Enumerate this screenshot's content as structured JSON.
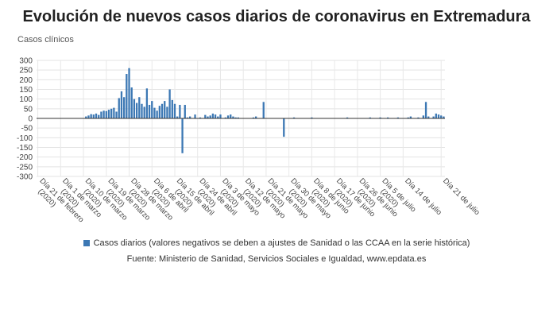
{
  "header": {
    "title": "Evolución de nuevos casos diarios de coronavirus en Extremadura",
    "unit_label": "Casos clínicos"
  },
  "legend": {
    "label": "Casos diarios (valores negativos se deben a ajustes de Sanidad o las CCAA en la serie histórica)"
  },
  "footer": {
    "source": "Fuente: Ministerio de Sanidad, Servicios Sociales e Igualdad, www.epdata.es"
  },
  "chart_data": {
    "type": "bar",
    "title": "Evolución de nuevos casos diarios de coronavirus en Extremadura",
    "ylabel": "Casos clínicos",
    "xlabel": "",
    "ylim": [
      -300,
      300
    ],
    "yticks": [
      -300,
      -250,
      -200,
      -150,
      -100,
      -50,
      0,
      50,
      100,
      150,
      200,
      250,
      300
    ],
    "grid": true,
    "legend_position": "bottom",
    "color": "#3c78b4",
    "x_tick_labels": [
      "Día 21 de febrero (2020)",
      "Día 1 de marzo (2020)",
      "Día 10 de marzo (2020)",
      "Día 19 de marzo (2020)",
      "Día 28 de marzo (2020)",
      "Día 6 de abril (2020)",
      "Día 15 de abril (2020)",
      "Día 24 de abril (2020)",
      "Día 3 de mayo (2020)",
      "Día 12 de mayo (2020)",
      "Día 21 de mayo (2020)",
      "Día 30 de mayo (2020)",
      "Día 8 de junio (2020)",
      "Día 17 de junio (2020)",
      "Día 26 de junio (2020)",
      "Día 5 de julio (2020)",
      "Día 14 de julio",
      "Día 21 de julio"
    ],
    "series": [
      {
        "name": "Casos diarios (valores negativos se deben a ajustes de Sanidad o las CCAA en la serie histórica)",
        "start_date": "2020-02-21",
        "values": [
          0,
          0,
          0,
          0,
          0,
          0,
          0,
          0,
          0,
          0,
          0,
          0,
          0,
          0,
          0,
          0,
          0,
          0,
          0,
          10,
          15,
          22,
          20,
          25,
          18,
          35,
          40,
          38,
          45,
          50,
          55,
          35,
          105,
          140,
          110,
          230,
          260,
          160,
          100,
          80,
          110,
          75,
          60,
          155,
          70,
          90,
          55,
          40,
          65,
          75,
          90,
          60,
          150,
          95,
          75,
          10,
          70,
          -180,
          70,
          5,
          10,
          0,
          20,
          0,
          5,
          0,
          18,
          10,
          15,
          25,
          20,
          10,
          20,
          0,
          5,
          15,
          20,
          10,
          5,
          5,
          0,
          0,
          0,
          0,
          0,
          5,
          10,
          0,
          0,
          85,
          0,
          0,
          0,
          0,
          0,
          0,
          0,
          -95,
          0,
          0,
          0,
          5,
          0,
          0,
          0,
          0,
          0,
          0,
          5,
          0,
          0,
          0,
          0,
          0,
          0,
          0,
          0,
          0,
          0,
          0,
          0,
          0,
          5,
          0,
          0,
          0,
          0,
          0,
          0,
          0,
          0,
          5,
          0,
          0,
          0,
          5,
          0,
          0,
          5,
          0,
          0,
          0,
          5,
          0,
          0,
          0,
          5,
          10,
          0,
          0,
          5,
          0,
          15,
          85,
          10,
          0,
          10,
          25,
          20,
          15,
          10
        ]
      }
    ]
  }
}
